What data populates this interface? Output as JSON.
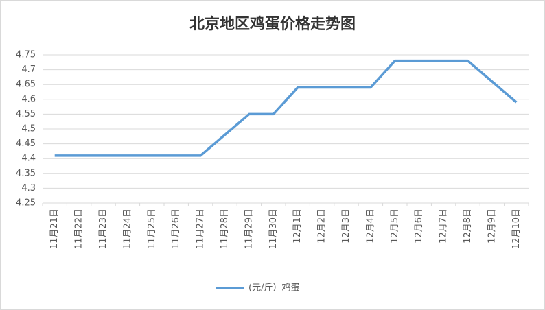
{
  "chart_data": {
    "type": "line",
    "title": "北京地区鸡蛋价格走势图",
    "categories": [
      "11月21日",
      "11月22日",
      "11月23日",
      "11月24日",
      "11月25日",
      "11月26日",
      "11月27日",
      "11月28日",
      "11月29日",
      "11月30日",
      "12月1日",
      "12月2日",
      "12月3日",
      "12月4日",
      "12月5日",
      "12月6日",
      "12月7日",
      "12月8日",
      "12月9日",
      "12月10日"
    ],
    "series": [
      {
        "name": "(元/斤）鸡蛋",
        "color": "#5b9bd5",
        "values": [
          4.41,
          4.41,
          4.41,
          4.41,
          4.41,
          4.41,
          4.41,
          4.48,
          4.55,
          4.55,
          4.64,
          4.64,
          4.64,
          4.64,
          4.73,
          4.73,
          4.73,
          4.73,
          4.66,
          4.59
        ]
      }
    ],
    "ylim": [
      4.25,
      4.75
    ],
    "yticks": [
      4.25,
      4.3,
      4.35,
      4.4,
      4.45,
      4.5,
      4.55,
      4.6,
      4.65,
      4.7,
      4.75
    ],
    "grid": true,
    "legend": "bottom"
  }
}
